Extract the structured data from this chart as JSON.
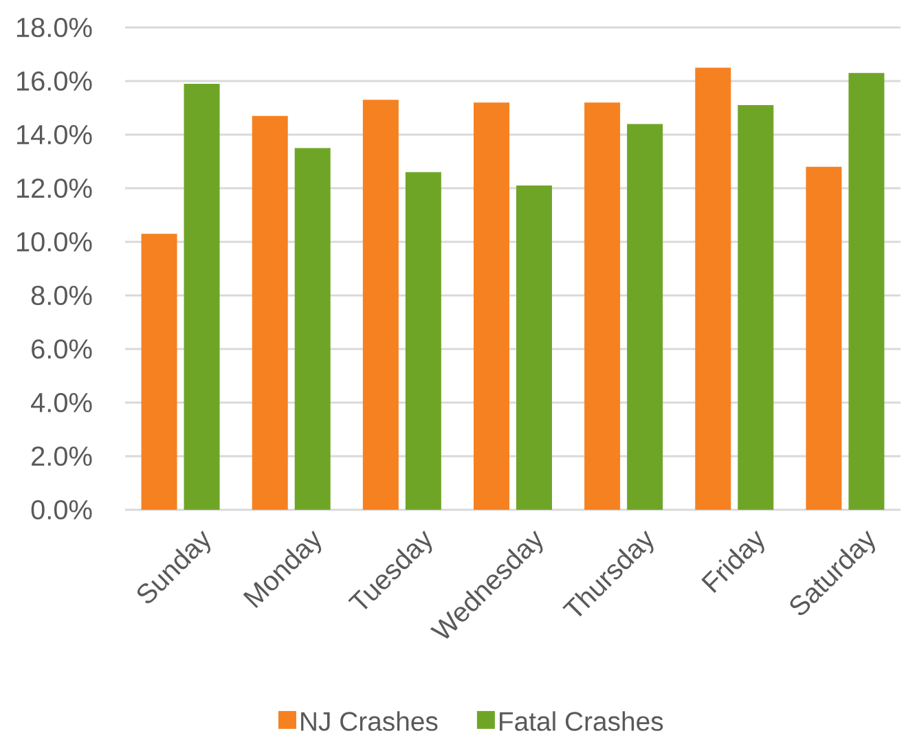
{
  "chart_data": {
    "type": "bar",
    "categories": [
      "Sunday",
      "Monday",
      "Tuesday",
      "Wednesday",
      "Thursday",
      "Friday",
      "Saturday"
    ],
    "series": [
      {
        "name": "NJ Crashes",
        "color": "#f68121",
        "values": [
          10.3,
          14.7,
          15.3,
          15.2,
          15.2,
          16.5,
          12.8
        ]
      },
      {
        "name": "Fatal Crashes",
        "color": "#6fa526",
        "values": [
          15.9,
          13.5,
          12.6,
          12.1,
          14.4,
          15.1,
          16.3
        ]
      }
    ],
    "ylim": [
      0,
      18
    ],
    "yticks": [
      {
        "value": 0,
        "label": "0.0%"
      },
      {
        "value": 2,
        "label": "2.0%"
      },
      {
        "value": 4,
        "label": "4.0%"
      },
      {
        "value": 6,
        "label": "6.0%"
      },
      {
        "value": 8,
        "label": "8.0%"
      },
      {
        "value": 10,
        "label": "10.0%"
      },
      {
        "value": 12,
        "label": "12.0%"
      },
      {
        "value": 14,
        "label": "14.0%"
      },
      {
        "value": 16,
        "label": "16.0%"
      },
      {
        "value": 18,
        "label": "18.0%"
      }
    ],
    "grid": "y",
    "legend": "bottom"
  }
}
